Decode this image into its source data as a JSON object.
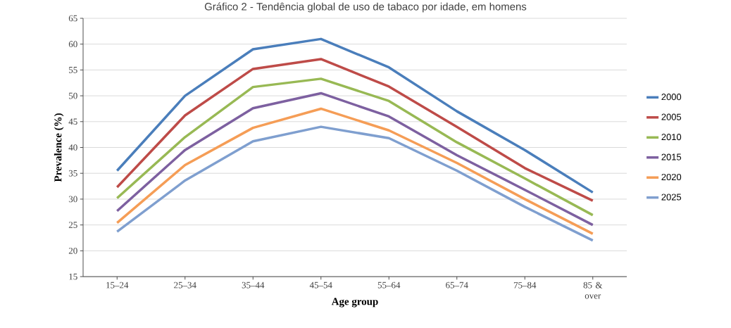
{
  "chart_data": {
    "type": "line",
    "title": "Gráfico 2 - Tendência global de uso de tabaco por idade, em homens",
    "xlabel": "Age group",
    "ylabel": "Prevalence (%)",
    "categories": [
      "15–24",
      "25–34",
      "35–44",
      "45–54",
      "55–64",
      "65–74",
      "75–84",
      "85 & over"
    ],
    "series": [
      {
        "name": "2000",
        "color": "#4a7ebb",
        "values": [
          35.5,
          50,
          59,
          61,
          55.5,
          47,
          39.5,
          31.3
        ]
      },
      {
        "name": "2005",
        "color": "#be4b48",
        "values": [
          32.3,
          46.2,
          55.2,
          57.1,
          51.8,
          44,
          36,
          29.7
        ]
      },
      {
        "name": "2010",
        "color": "#98b954",
        "values": [
          30.2,
          42,
          51.7,
          53.3,
          49,
          41,
          34,
          26.9
        ]
      },
      {
        "name": "2015",
        "color": "#7d60a0",
        "values": [
          27.7,
          39.5,
          47.6,
          50.5,
          46,
          38.5,
          31.8,
          25
        ]
      },
      {
        "name": "2020",
        "color": "#f59d56",
        "values": [
          25.4,
          36.6,
          43.8,
          47.5,
          43.3,
          37,
          30,
          23.3
        ]
      },
      {
        "name": "2025",
        "color": "#7f9fcf",
        "values": [
          23.7,
          33.6,
          41.2,
          44,
          41.8,
          35.5,
          28.5,
          22
        ]
      }
    ],
    "ylim": [
      15,
      65
    ],
    "yticks": [
      15,
      20,
      25,
      30,
      35,
      40,
      45,
      50,
      55,
      60,
      65
    ],
    "grid": "y",
    "legend": "right",
    "marker": "none",
    "line_style": "solid"
  }
}
